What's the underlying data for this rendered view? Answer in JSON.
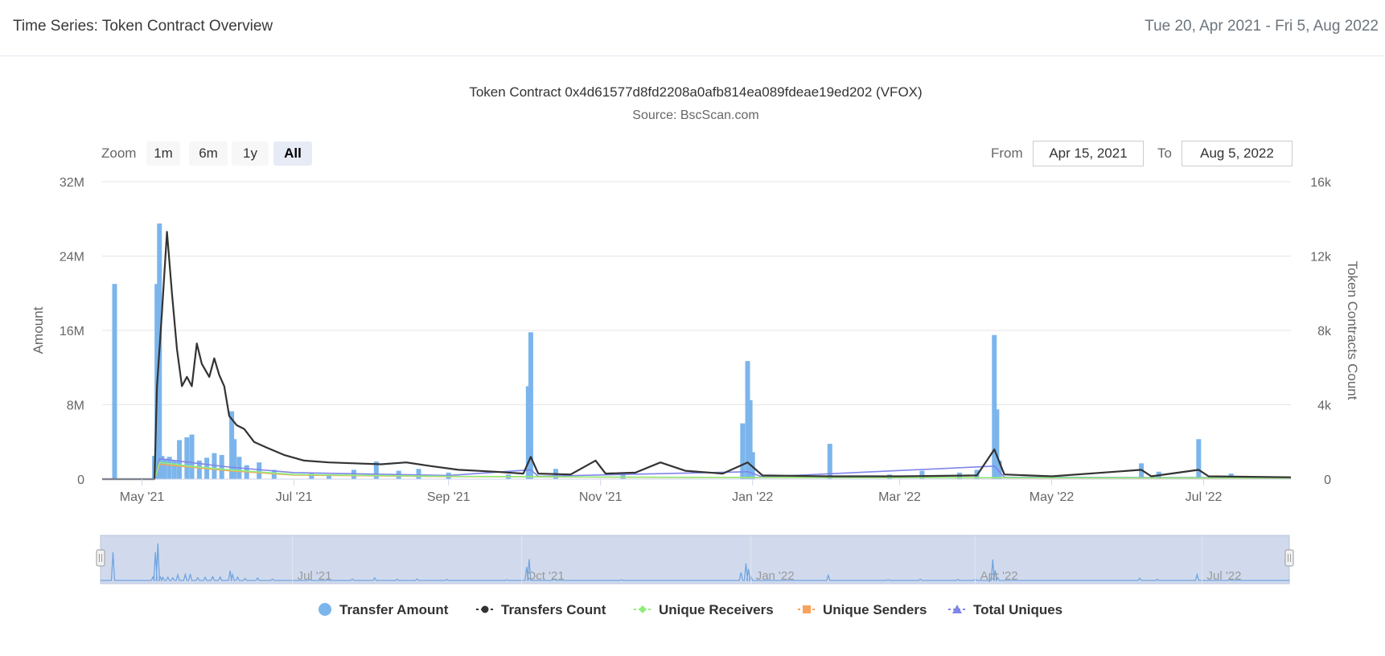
{
  "header": {
    "title": "Time Series: Token Contract Overview",
    "date_range": "Tue 20, Apr 2021 - Fri 5, Aug 2022"
  },
  "controls": {
    "zoom_label": "Zoom",
    "zoom_buttons": [
      "1m",
      "6m",
      "1y",
      "All"
    ],
    "active_zoom": "All",
    "from_label": "From",
    "from_value": "Apr 15, 2021",
    "to_label": "To",
    "to_value": "Aug 5, 2022"
  },
  "chart_data": {
    "type": "bar+line",
    "title": "Token Contract 0x4d61577d8fd2208a0afb814ea089fdeae19ed202 (VFOX)",
    "subtitle": "Source: BscScan.com",
    "start_date": "2021-04-15",
    "end_date": "2022-08-05",
    "y_left": {
      "label": "Amount",
      "min": 0,
      "max": 32000000,
      "ticks": [
        0,
        8000000,
        16000000,
        24000000,
        32000000
      ],
      "tick_labels": [
        "0",
        "8M",
        "16M",
        "24M",
        "32M"
      ]
    },
    "y_right": {
      "label": "Token Contracts Count",
      "min": 0,
      "max": 16000,
      "ticks": [
        0,
        4000,
        8000,
        12000,
        16000
      ],
      "tick_labels": [
        "0",
        "4k",
        "8k",
        "12k",
        "16k"
      ]
    },
    "x_ticks": [
      {
        "date": "2021-05-01",
        "label": "May '21"
      },
      {
        "date": "2021-07-01",
        "label": "Jul '21"
      },
      {
        "date": "2021-09-01",
        "label": "Sep '21"
      },
      {
        "date": "2021-11-01",
        "label": "Nov '21"
      },
      {
        "date": "2022-01-01",
        "label": "Jan '22"
      },
      {
        "date": "2022-03-01",
        "label": "Mar '22"
      },
      {
        "date": "2022-05-01",
        "label": "May '22"
      },
      {
        "date": "2022-07-01",
        "label": "Jul '22"
      }
    ],
    "navigator_ticks": [
      {
        "date": "2021-07-01",
        "label": "Jul '21"
      },
      {
        "date": "2021-10-01",
        "label": "Oct '21"
      },
      {
        "date": "2022-01-01",
        "label": "Jan '22"
      },
      {
        "date": "2022-04-01",
        "label": "Apr '22"
      },
      {
        "date": "2022-07-01",
        "label": "Jul '22"
      }
    ],
    "transfer_amount": [
      {
        "date": "2021-04-20",
        "value": 21000000
      },
      {
        "date": "2021-05-06",
        "value": 2500000
      },
      {
        "date": "2021-05-07",
        "value": 21000000
      },
      {
        "date": "2021-05-08",
        "value": 27500000
      },
      {
        "date": "2021-05-09",
        "value": 2500000
      },
      {
        "date": "2021-05-10",
        "value": 2200000
      },
      {
        "date": "2021-05-12",
        "value": 2400000
      },
      {
        "date": "2021-05-14",
        "value": 2000000
      },
      {
        "date": "2021-05-16",
        "value": 4200000
      },
      {
        "date": "2021-05-19",
        "value": 4500000
      },
      {
        "date": "2021-05-21",
        "value": 4800000
      },
      {
        "date": "2021-05-24",
        "value": 2000000
      },
      {
        "date": "2021-05-27",
        "value": 2300000
      },
      {
        "date": "2021-05-30",
        "value": 2800000
      },
      {
        "date": "2021-06-02",
        "value": 2600000
      },
      {
        "date": "2021-06-06",
        "value": 7300000
      },
      {
        "date": "2021-06-07",
        "value": 4300000
      },
      {
        "date": "2021-06-09",
        "value": 2400000
      },
      {
        "date": "2021-06-12",
        "value": 1500000
      },
      {
        "date": "2021-06-17",
        "value": 1800000
      },
      {
        "date": "2021-06-23",
        "value": 1000000
      },
      {
        "date": "2021-07-08",
        "value": 600000
      },
      {
        "date": "2021-07-15",
        "value": 500000
      },
      {
        "date": "2021-07-25",
        "value": 1000000
      },
      {
        "date": "2021-08-03",
        "value": 1900000
      },
      {
        "date": "2021-08-12",
        "value": 900000
      },
      {
        "date": "2021-08-20",
        "value": 1100000
      },
      {
        "date": "2021-09-01",
        "value": 700000
      },
      {
        "date": "2021-09-25",
        "value": 500000
      },
      {
        "date": "2021-10-03",
        "value": 10000000
      },
      {
        "date": "2021-10-04",
        "value": 15800000
      },
      {
        "date": "2021-10-14",
        "value": 1100000
      },
      {
        "date": "2021-11-10",
        "value": 500000
      },
      {
        "date": "2021-12-28",
        "value": 6000000
      },
      {
        "date": "2021-12-30",
        "value": 12700000
      },
      {
        "date": "2021-12-31",
        "value": 8500000
      },
      {
        "date": "2022-01-01",
        "value": 2900000
      },
      {
        "date": "2022-02-01",
        "value": 3800000
      },
      {
        "date": "2022-02-25",
        "value": 500000
      },
      {
        "date": "2022-03-10",
        "value": 900000
      },
      {
        "date": "2022-03-25",
        "value": 700000
      },
      {
        "date": "2022-04-01",
        "value": 1000000
      },
      {
        "date": "2022-04-08",
        "value": 15500000
      },
      {
        "date": "2022-04-09",
        "value": 7500000
      },
      {
        "date": "2022-04-10",
        "value": 2000000
      },
      {
        "date": "2022-06-06",
        "value": 1700000
      },
      {
        "date": "2022-06-13",
        "value": 800000
      },
      {
        "date": "2022-06-29",
        "value": 4300000
      },
      {
        "date": "2022-07-12",
        "value": 600000
      }
    ],
    "series": [
      {
        "name": "Transfers Count",
        "color": "#333333",
        "points": [
          {
            "date": "2021-04-15",
            "value": 0
          },
          {
            "date": "2021-05-06",
            "value": 0
          },
          {
            "date": "2021-05-07",
            "value": 5000
          },
          {
            "date": "2021-05-09",
            "value": 9000
          },
          {
            "date": "2021-05-11",
            "value": 13300
          },
          {
            "date": "2021-05-13",
            "value": 10000
          },
          {
            "date": "2021-05-15",
            "value": 7000
          },
          {
            "date": "2021-05-17",
            "value": 5000
          },
          {
            "date": "2021-05-19",
            "value": 5500
          },
          {
            "date": "2021-05-21",
            "value": 5000
          },
          {
            "date": "2021-05-23",
            "value": 7300
          },
          {
            "date": "2021-05-25",
            "value": 6200
          },
          {
            "date": "2021-05-28",
            "value": 5500
          },
          {
            "date": "2021-05-30",
            "value": 6500
          },
          {
            "date": "2021-06-01",
            "value": 5600
          },
          {
            "date": "2021-06-03",
            "value": 5000
          },
          {
            "date": "2021-06-05",
            "value": 3400
          },
          {
            "date": "2021-06-08",
            "value": 2900
          },
          {
            "date": "2021-06-11",
            "value": 2700
          },
          {
            "date": "2021-06-15",
            "value": 2000
          },
          {
            "date": "2021-06-20",
            "value": 1700
          },
          {
            "date": "2021-06-27",
            "value": 1300
          },
          {
            "date": "2021-07-05",
            "value": 1000
          },
          {
            "date": "2021-07-15",
            "value": 900
          },
          {
            "date": "2021-07-25",
            "value": 850
          },
          {
            "date": "2021-08-05",
            "value": 800
          },
          {
            "date": "2021-08-15",
            "value": 900
          },
          {
            "date": "2021-08-25",
            "value": 700
          },
          {
            "date": "2021-09-05",
            "value": 500
          },
          {
            "date": "2021-09-20",
            "value": 400
          },
          {
            "date": "2021-10-01",
            "value": 300
          },
          {
            "date": "2021-10-04",
            "value": 1200
          },
          {
            "date": "2021-10-07",
            "value": 300
          },
          {
            "date": "2021-10-20",
            "value": 250
          },
          {
            "date": "2021-10-30",
            "value": 1000
          },
          {
            "date": "2021-11-03",
            "value": 300
          },
          {
            "date": "2021-11-15",
            "value": 350
          },
          {
            "date": "2021-11-25",
            "value": 900
          },
          {
            "date": "2021-12-05",
            "value": 450
          },
          {
            "date": "2021-12-20",
            "value": 300
          },
          {
            "date": "2021-12-30",
            "value": 900
          },
          {
            "date": "2022-01-05",
            "value": 200
          },
          {
            "date": "2022-02-01",
            "value": 150
          },
          {
            "date": "2022-03-01",
            "value": 150
          },
          {
            "date": "2022-04-01",
            "value": 200
          },
          {
            "date": "2022-04-08",
            "value": 1600
          },
          {
            "date": "2022-04-12",
            "value": 250
          },
          {
            "date": "2022-05-01",
            "value": 150
          },
          {
            "date": "2022-06-06",
            "value": 500
          },
          {
            "date": "2022-06-10",
            "value": 150
          },
          {
            "date": "2022-06-29",
            "value": 500
          },
          {
            "date": "2022-07-03",
            "value": 150
          },
          {
            "date": "2022-08-05",
            "value": 100
          }
        ]
      },
      {
        "name": "Unique Receivers",
        "color": "#90ed7d",
        "points": [
          {
            "date": "2021-04-15",
            "value": 0
          },
          {
            "date": "2021-05-06",
            "value": 0
          },
          {
            "date": "2021-05-08",
            "value": 900
          },
          {
            "date": "2021-05-20",
            "value": 700
          },
          {
            "date": "2021-06-05",
            "value": 500
          },
          {
            "date": "2021-07-01",
            "value": 250
          },
          {
            "date": "2021-09-01",
            "value": 150
          },
          {
            "date": "2021-12-01",
            "value": 100
          },
          {
            "date": "2022-08-05",
            "value": 60
          }
        ]
      },
      {
        "name": "Unique Senders",
        "color": "#f7a35c",
        "points": [
          {
            "date": "2021-04-15",
            "value": 0
          },
          {
            "date": "2021-05-06",
            "value": 0
          },
          {
            "date": "2021-05-08",
            "value": 800
          },
          {
            "date": "2021-05-20",
            "value": 650
          },
          {
            "date": "2021-06-05",
            "value": 450
          },
          {
            "date": "2021-07-01",
            "value": 220
          },
          {
            "date": "2021-09-01",
            "value": 140
          },
          {
            "date": "2021-12-01",
            "value": 90
          },
          {
            "date": "2022-08-05",
            "value": 50
          }
        ]
      },
      {
        "name": "Total Uniques",
        "color": "#8085e9",
        "points": [
          {
            "date": "2021-04-15",
            "value": 0
          },
          {
            "date": "2021-05-06",
            "value": 0
          },
          {
            "date": "2021-05-08",
            "value": 1100
          },
          {
            "date": "2021-05-20",
            "value": 900
          },
          {
            "date": "2021-06-05",
            "value": 650
          },
          {
            "date": "2021-07-01",
            "value": 350
          },
          {
            "date": "2021-09-01",
            "value": 200
          },
          {
            "date": "2021-10-04",
            "value": 500
          },
          {
            "date": "2021-10-07",
            "value": 150
          },
          {
            "date": "2021-12-30",
            "value": 400
          },
          {
            "date": "2022-01-05",
            "value": 120
          },
          {
            "date": "2022-04-08",
            "value": 700
          },
          {
            "date": "2022-04-12",
            "value": 100
          },
          {
            "date": "2022-08-05",
            "value": 80
          }
        ]
      }
    ],
    "legend": [
      {
        "name": "Transfer Amount",
        "color": "#7cb5ec",
        "symbol": "circle"
      },
      {
        "name": "Transfers Count",
        "color": "#333333",
        "symbol": "circle"
      },
      {
        "name": "Unique Receivers",
        "color": "#90ed7d",
        "symbol": "diamond"
      },
      {
        "name": "Unique Senders",
        "color": "#f7a35c",
        "symbol": "square"
      },
      {
        "name": "Total Uniques",
        "color": "#8085e9",
        "symbol": "triangle"
      }
    ],
    "legend_position": "bottom-center"
  }
}
